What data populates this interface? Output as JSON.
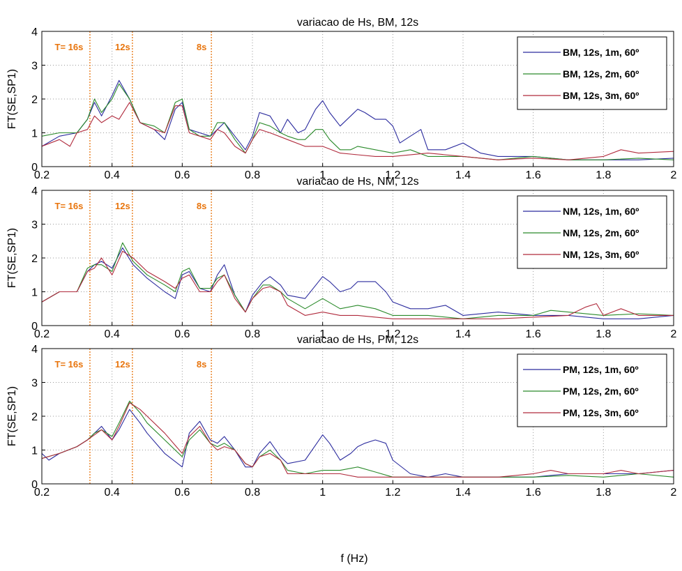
{
  "colors": {
    "series1": "#2b2b9e",
    "series2": "#2a8a2a",
    "series3": "#b02a3c",
    "marker": "#e8740c",
    "grid": "#9a9a9a"
  },
  "xlabel": "f (Hz)",
  "chart_data": [
    {
      "type": "line",
      "title": "variacao de Hs, BM, 12s",
      "ylabel": "FT(SE,SP1)",
      "xlim": [
        0.2,
        2
      ],
      "ylim": [
        0,
        4
      ],
      "xticks": [
        "0.2",
        "0.4",
        "0.6",
        "0.8",
        "1",
        "1.2",
        "1.4",
        "1.6",
        "1.8",
        "2"
      ],
      "yticks": [
        "0",
        "1",
        "2",
        "3",
        "4"
      ],
      "grid": true,
      "legend_position": "top-right",
      "period_markers": [
        {
          "f": 0.337,
          "label": "T= 16s"
        },
        {
          "f": 0.458,
          "label": "12s"
        },
        {
          "f": 0.683,
          "label": "8s"
        }
      ],
      "series": [
        {
          "name": "BM, 12s, 1m, 60º",
          "x": [
            0.2,
            0.25,
            0.3,
            0.33,
            0.35,
            0.37,
            0.4,
            0.42,
            0.45,
            0.48,
            0.52,
            0.55,
            0.58,
            0.6,
            0.62,
            0.65,
            0.68,
            0.7,
            0.72,
            0.75,
            0.78,
            0.8,
            0.82,
            0.85,
            0.88,
            0.9,
            0.93,
            0.95,
            0.98,
            1.0,
            1.02,
            1.05,
            1.08,
            1.1,
            1.12,
            1.15,
            1.18,
            1.2,
            1.22,
            1.25,
            1.28,
            1.3,
            1.35,
            1.4,
            1.45,
            1.5,
            1.6,
            1.7,
            1.8,
            1.9,
            2.0
          ],
          "y": [
            0.6,
            0.9,
            1.0,
            1.4,
            1.9,
            1.5,
            2.1,
            2.55,
            2.0,
            1.3,
            1.1,
            0.8,
            1.7,
            1.9,
            1.1,
            1.0,
            0.9,
            1.1,
            1.3,
            0.9,
            0.5,
            0.9,
            1.6,
            1.5,
            1.0,
            1.4,
            1.0,
            1.1,
            1.7,
            1.95,
            1.6,
            1.2,
            1.5,
            1.7,
            1.6,
            1.4,
            1.4,
            1.2,
            0.7,
            0.9,
            1.1,
            0.5,
            0.5,
            0.7,
            0.4,
            0.3,
            0.3,
            0.2,
            0.2,
            0.2,
            0.25
          ]
        },
        {
          "name": "BM, 12s, 2m, 60º",
          "x": [
            0.2,
            0.25,
            0.3,
            0.33,
            0.35,
            0.37,
            0.4,
            0.42,
            0.45,
            0.48,
            0.52,
            0.55,
            0.58,
            0.6,
            0.62,
            0.65,
            0.68,
            0.7,
            0.72,
            0.75,
            0.78,
            0.8,
            0.82,
            0.85,
            0.88,
            0.9,
            0.93,
            0.95,
            0.98,
            1.0,
            1.02,
            1.05,
            1.08,
            1.1,
            1.15,
            1.2,
            1.25,
            1.3,
            1.4,
            1.5,
            1.6,
            1.7,
            1.8,
            1.9,
            2.0
          ],
          "y": [
            0.9,
            1.0,
            1.0,
            1.4,
            2.0,
            1.6,
            2.0,
            2.45,
            2.0,
            1.3,
            1.2,
            1.0,
            1.9,
            2.0,
            1.1,
            0.9,
            0.9,
            1.3,
            1.3,
            0.8,
            0.4,
            0.8,
            1.3,
            1.2,
            1.0,
            0.9,
            0.8,
            0.8,
            1.1,
            1.1,
            0.8,
            0.5,
            0.5,
            0.6,
            0.5,
            0.4,
            0.5,
            0.3,
            0.3,
            0.2,
            0.3,
            0.2,
            0.2,
            0.25,
            0.2
          ]
        },
        {
          "name": "BM, 12s, 3m, 60º",
          "x": [
            0.2,
            0.25,
            0.28,
            0.3,
            0.33,
            0.35,
            0.37,
            0.4,
            0.42,
            0.45,
            0.48,
            0.52,
            0.55,
            0.58,
            0.6,
            0.62,
            0.65,
            0.68,
            0.7,
            0.72,
            0.75,
            0.78,
            0.8,
            0.82,
            0.85,
            0.9,
            0.95,
            1.0,
            1.05,
            1.1,
            1.15,
            1.2,
            1.3,
            1.4,
            1.5,
            1.6,
            1.7,
            1.8,
            1.85,
            1.9,
            2.0
          ],
          "y": [
            0.6,
            0.8,
            0.6,
            1.0,
            1.1,
            1.5,
            1.3,
            1.5,
            1.4,
            1.9,
            1.3,
            1.1,
            1.0,
            1.8,
            1.8,
            1.0,
            0.9,
            0.8,
            1.1,
            1.0,
            0.6,
            0.4,
            0.8,
            1.1,
            1.0,
            0.8,
            0.6,
            0.6,
            0.4,
            0.35,
            0.3,
            0.3,
            0.4,
            0.3,
            0.2,
            0.25,
            0.2,
            0.3,
            0.5,
            0.4,
            0.45
          ]
        }
      ]
    },
    {
      "type": "line",
      "title": "variacao de Hs, NM, 12s",
      "ylabel": "FT(SE,SP1)",
      "xlim": [
        0.2,
        2
      ],
      "ylim": [
        0,
        4
      ],
      "xticks": [
        "0.2",
        "0.4",
        "0.6",
        "0.8",
        "1",
        "1.2",
        "1.4",
        "1.6",
        "1.8",
        "2"
      ],
      "yticks": [
        "0",
        "1",
        "2",
        "3",
        "4"
      ],
      "grid": true,
      "legend_position": "top-right",
      "period_markers": [
        {
          "f": 0.337,
          "label": "T= 16s"
        },
        {
          "f": 0.458,
          "label": "12s"
        },
        {
          "f": 0.683,
          "label": "8s"
        }
      ],
      "series": [
        {
          "name": "NM, 12s, 1m, 60º",
          "x": [
            0.2,
            0.25,
            0.3,
            0.33,
            0.35,
            0.37,
            0.4,
            0.43,
            0.46,
            0.5,
            0.55,
            0.58,
            0.6,
            0.62,
            0.65,
            0.68,
            0.7,
            0.72,
            0.75,
            0.78,
            0.8,
            0.83,
            0.85,
            0.88,
            0.9,
            0.95,
            1.0,
            1.02,
            1.05,
            1.08,
            1.1,
            1.12,
            1.15,
            1.18,
            1.2,
            1.25,
            1.3,
            1.35,
            1.4,
            1.5,
            1.6,
            1.7,
            1.8,
            1.9,
            2.0
          ],
          "y": [
            0.7,
            1.0,
            1.0,
            1.6,
            1.8,
            1.9,
            1.7,
            2.3,
            1.8,
            1.4,
            1.0,
            0.8,
            1.5,
            1.6,
            1.1,
            1.0,
            1.5,
            1.8,
            0.9,
            0.4,
            0.9,
            1.3,
            1.45,
            1.2,
            0.9,
            0.8,
            1.45,
            1.3,
            1.0,
            1.1,
            1.3,
            1.3,
            1.3,
            1.0,
            0.7,
            0.5,
            0.5,
            0.6,
            0.3,
            0.4,
            0.3,
            0.3,
            0.2,
            0.2,
            0.3
          ]
        },
        {
          "name": "NM, 12s, 2m, 60º",
          "x": [
            0.2,
            0.25,
            0.3,
            0.33,
            0.35,
            0.37,
            0.4,
            0.43,
            0.46,
            0.5,
            0.55,
            0.58,
            0.6,
            0.62,
            0.65,
            0.68,
            0.7,
            0.72,
            0.75,
            0.78,
            0.8,
            0.83,
            0.85,
            0.88,
            0.9,
            0.95,
            1.0,
            1.05,
            1.1,
            1.15,
            1.2,
            1.3,
            1.4,
            1.5,
            1.6,
            1.65,
            1.7,
            1.8,
            1.9,
            2.0
          ],
          "y": [
            0.7,
            1.0,
            1.0,
            1.7,
            1.8,
            1.8,
            1.6,
            2.45,
            1.9,
            1.5,
            1.2,
            1.0,
            1.6,
            1.7,
            1.1,
            1.1,
            1.4,
            1.5,
            0.9,
            0.4,
            0.8,
            1.2,
            1.2,
            1.0,
            0.8,
            0.5,
            0.8,
            0.5,
            0.6,
            0.5,
            0.3,
            0.3,
            0.2,
            0.3,
            0.3,
            0.45,
            0.4,
            0.3,
            0.35,
            0.3
          ]
        },
        {
          "name": "NM, 12s, 3m, 60º",
          "x": [
            0.2,
            0.25,
            0.3,
            0.33,
            0.35,
            0.37,
            0.4,
            0.43,
            0.46,
            0.5,
            0.55,
            0.58,
            0.6,
            0.62,
            0.65,
            0.68,
            0.7,
            0.72,
            0.75,
            0.78,
            0.8,
            0.83,
            0.85,
            0.88,
            0.9,
            0.95,
            1.0,
            1.05,
            1.1,
            1.2,
            1.3,
            1.4,
            1.5,
            1.6,
            1.7,
            1.75,
            1.78,
            1.8,
            1.85,
            1.9,
            2.0
          ],
          "y": [
            0.7,
            1.0,
            1.0,
            1.6,
            1.7,
            2.0,
            1.5,
            2.2,
            2.0,
            1.6,
            1.3,
            1.1,
            1.4,
            1.5,
            1.0,
            1.0,
            1.3,
            1.5,
            0.8,
            0.4,
            0.8,
            1.1,
            1.15,
            1.0,
            0.6,
            0.3,
            0.4,
            0.3,
            0.3,
            0.2,
            0.2,
            0.2,
            0.2,
            0.25,
            0.3,
            0.55,
            0.65,
            0.3,
            0.5,
            0.3,
            0.3
          ]
        }
      ]
    },
    {
      "type": "line",
      "title": "variacao de Hs, PM, 12s",
      "ylabel": "FT(SE,SP1)",
      "xlabel": "f (Hz)",
      "xlim": [
        0.2,
        2
      ],
      "ylim": [
        0,
        4
      ],
      "xticks": [
        "0.2",
        "0.4",
        "0.6",
        "0.8",
        "1",
        "1.2",
        "1.4",
        "1.6",
        "1.8",
        "2"
      ],
      "yticks": [
        "0",
        "1",
        "2",
        "3",
        "4"
      ],
      "grid": true,
      "legend_position": "top-right",
      "period_markers": [
        {
          "f": 0.337,
          "label": "T= 16s"
        },
        {
          "f": 0.458,
          "label": "12s"
        },
        {
          "f": 0.683,
          "label": "8s"
        }
      ],
      "series": [
        {
          "name": "PM, 12s, 1m, 60º",
          "x": [
            0.2,
            0.22,
            0.25,
            0.3,
            0.33,
            0.35,
            0.37,
            0.4,
            0.42,
            0.45,
            0.48,
            0.5,
            0.55,
            0.6,
            0.62,
            0.65,
            0.68,
            0.7,
            0.72,
            0.75,
            0.78,
            0.8,
            0.82,
            0.85,
            0.88,
            0.9,
            0.95,
            1.0,
            1.02,
            1.05,
            1.08,
            1.1,
            1.12,
            1.15,
            1.18,
            1.2,
            1.25,
            1.3,
            1.35,
            1.4,
            1.5,
            1.6,
            1.7,
            1.8,
            1.9,
            2.0
          ],
          "y": [
            0.9,
            0.7,
            0.9,
            1.1,
            1.3,
            1.5,
            1.7,
            1.3,
            1.6,
            2.2,
            1.8,
            1.5,
            0.9,
            0.5,
            1.5,
            1.85,
            1.3,
            1.2,
            1.4,
            1.0,
            0.5,
            0.5,
            0.9,
            1.25,
            0.8,
            0.6,
            0.7,
            1.45,
            1.2,
            0.7,
            0.9,
            1.1,
            1.2,
            1.3,
            1.2,
            0.7,
            0.3,
            0.2,
            0.3,
            0.2,
            0.2,
            0.2,
            0.3,
            0.3,
            0.3,
            0.4
          ]
        },
        {
          "name": "PM, 12s, 2m, 60º",
          "x": [
            0.2,
            0.25,
            0.3,
            0.33,
            0.35,
            0.37,
            0.4,
            0.42,
            0.45,
            0.48,
            0.5,
            0.55,
            0.6,
            0.62,
            0.65,
            0.68,
            0.7,
            0.72,
            0.75,
            0.78,
            0.8,
            0.82,
            0.85,
            0.88,
            0.9,
            0.95,
            1.0,
            1.05,
            1.1,
            1.15,
            1.2,
            1.3,
            1.4,
            1.5,
            1.6,
            1.7,
            1.8,
            1.9,
            2.0
          ],
          "y": [
            0.75,
            0.9,
            1.1,
            1.3,
            1.5,
            1.6,
            1.4,
            1.8,
            2.45,
            2.1,
            1.8,
            1.3,
            0.8,
            1.3,
            1.6,
            1.2,
            1.1,
            1.2,
            1.0,
            0.6,
            0.5,
            0.8,
            1.0,
            0.7,
            0.4,
            0.3,
            0.4,
            0.4,
            0.5,
            0.35,
            0.2,
            0.2,
            0.2,
            0.2,
            0.2,
            0.25,
            0.2,
            0.3,
            0.2
          ]
        },
        {
          "name": "PM, 12s, 3m, 60º",
          "x": [
            0.2,
            0.25,
            0.3,
            0.33,
            0.35,
            0.37,
            0.4,
            0.42,
            0.45,
            0.48,
            0.5,
            0.55,
            0.6,
            0.62,
            0.65,
            0.68,
            0.7,
            0.72,
            0.75,
            0.78,
            0.8,
            0.82,
            0.85,
            0.88,
            0.9,
            0.95,
            1.0,
            1.05,
            1.1,
            1.2,
            1.3,
            1.4,
            1.5,
            1.6,
            1.65,
            1.7,
            1.8,
            1.85,
            1.9,
            2.0
          ],
          "y": [
            0.75,
            0.9,
            1.1,
            1.3,
            1.45,
            1.6,
            1.3,
            1.7,
            2.4,
            2.2,
            2.0,
            1.5,
            0.9,
            1.4,
            1.7,
            1.2,
            1.0,
            1.1,
            1.0,
            0.6,
            0.5,
            0.8,
            0.9,
            0.7,
            0.3,
            0.3,
            0.3,
            0.3,
            0.2,
            0.2,
            0.2,
            0.2,
            0.2,
            0.3,
            0.4,
            0.3,
            0.3,
            0.4,
            0.3,
            0.4
          ]
        }
      ]
    }
  ]
}
